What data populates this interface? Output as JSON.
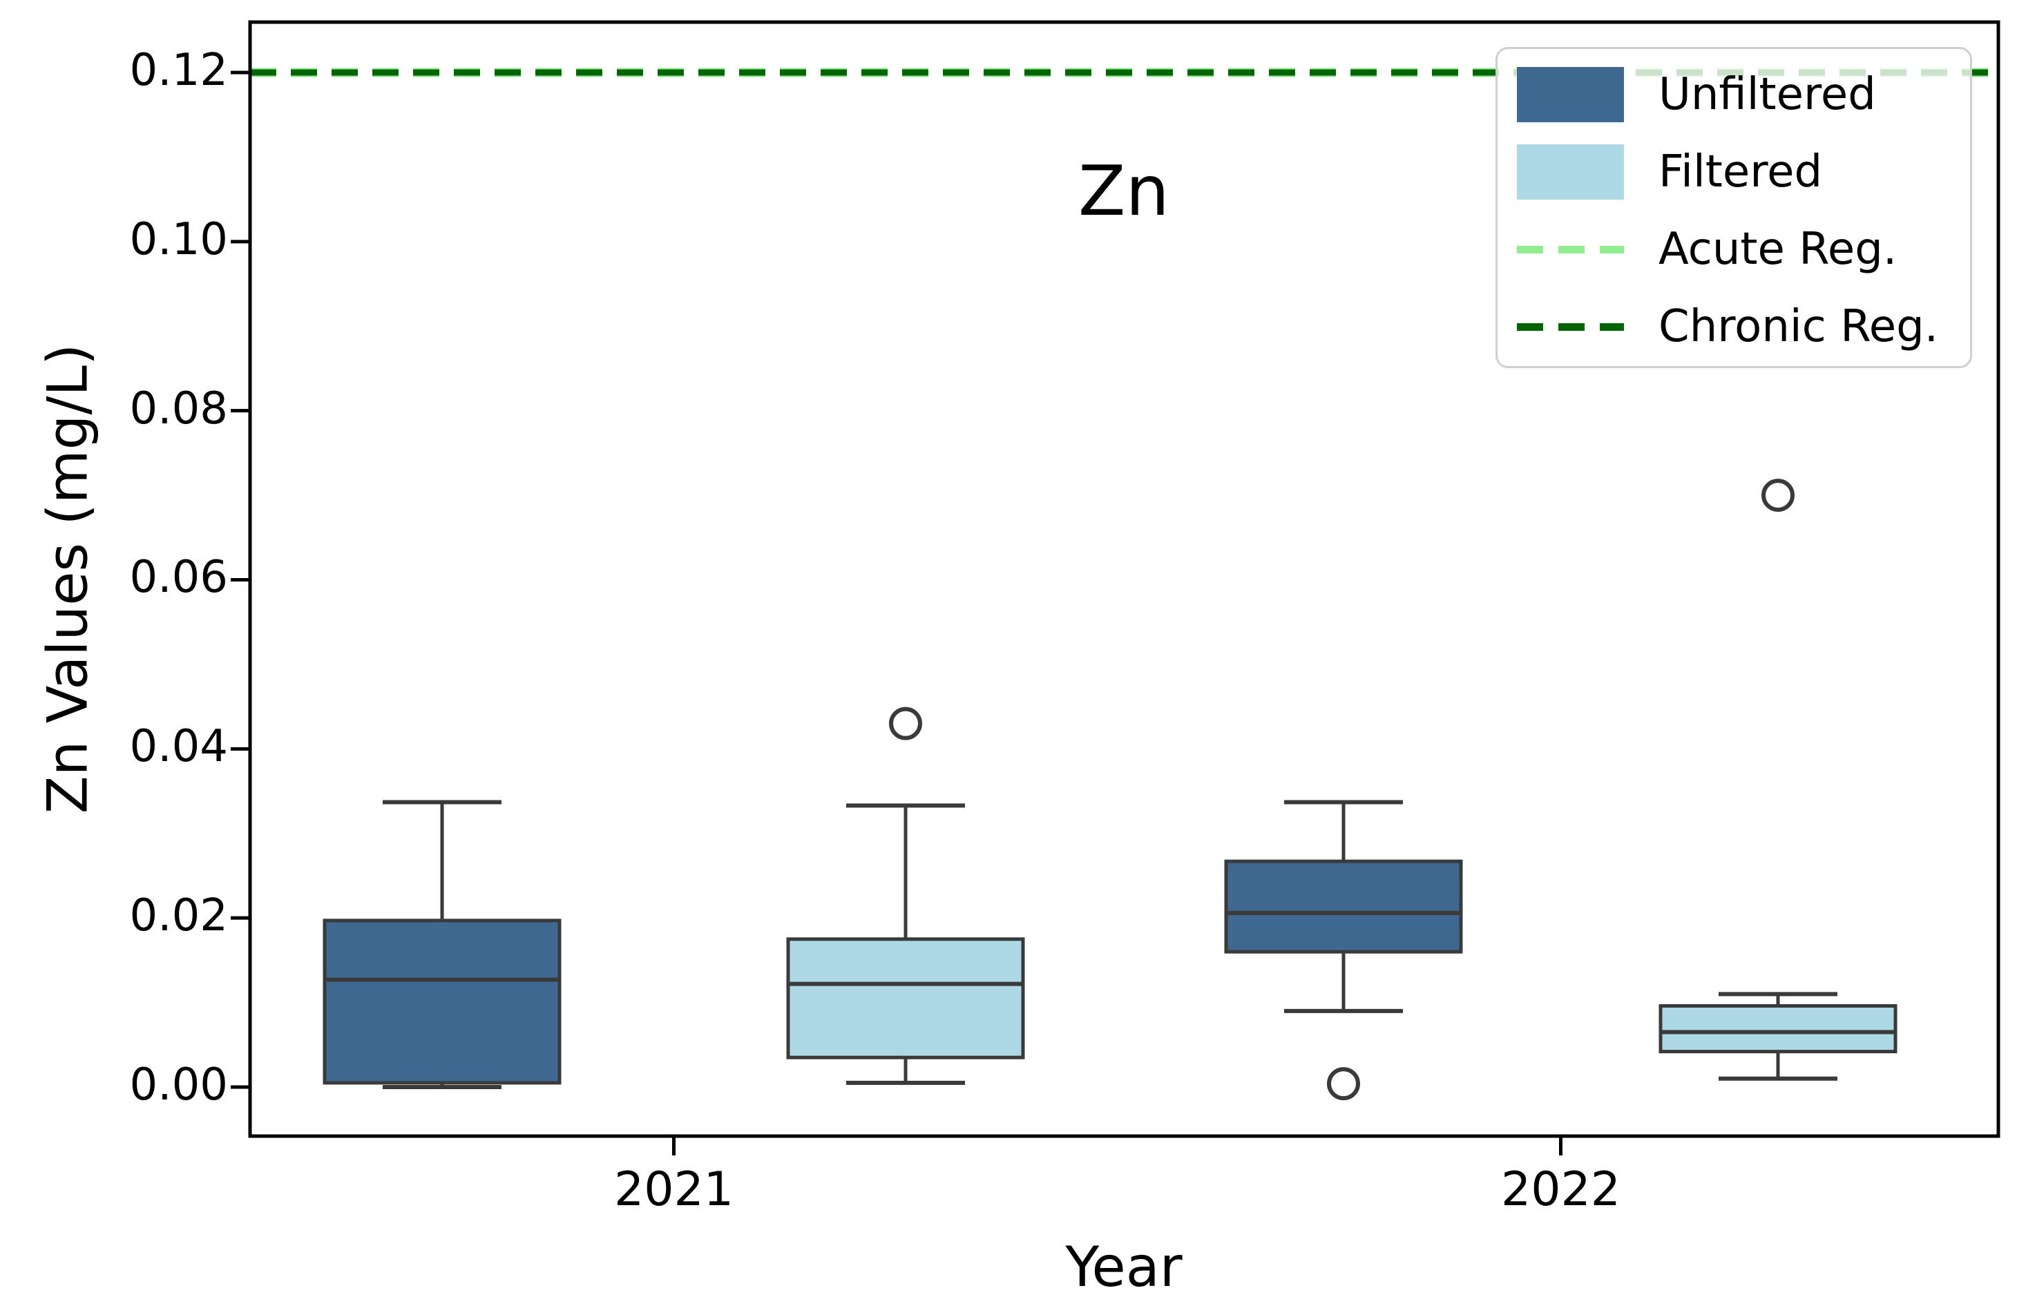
{
  "figure": {
    "title": "Zn",
    "xlabel": "Year",
    "ylabel": "Zn Values (mg/L)"
  },
  "axis": {
    "ytick_labels": [
      "0.00",
      "0.02",
      "0.04",
      "0.06",
      "0.08",
      "0.10",
      "0.12"
    ],
    "xtick_labels": [
      "2021",
      "2022"
    ]
  },
  "legend": {
    "items": [
      {
        "label": "Unfiltered",
        "type": "patch",
        "color": "#3e6890"
      },
      {
        "label": "Filtered",
        "type": "patch",
        "color": "#add8e6"
      },
      {
        "label": "Acute Reg.",
        "type": "dash",
        "color": "#90ee90"
      },
      {
        "label": "Chronic Reg.",
        "type": "dash",
        "color": "#006400"
      }
    ]
  },
  "chart_data": {
    "type": "boxplot",
    "title": "Zn",
    "xlabel": "Year",
    "ylabel": "Zn Values (mg/L)",
    "categories": [
      "2021",
      "2022"
    ],
    "ylim": [
      -0.006,
      0.126
    ],
    "yticks": [
      0.0,
      0.02,
      0.04,
      0.06,
      0.08,
      0.1,
      0.12
    ],
    "grid": false,
    "legend_position": "upper right",
    "box_edge_color": "#3a3a3a",
    "series": [
      {
        "name": "Unfiltered",
        "color": "#3e6890",
        "boxes": [
          {
            "category": "2021",
            "whislo": 0.0,
            "q1": 0.0005,
            "med": 0.0127,
            "q3": 0.0197,
            "whishi": 0.0337,
            "fliers": []
          },
          {
            "category": "2022",
            "whislo": 0.009,
            "q1": 0.016,
            "med": 0.0206,
            "q3": 0.0267,
            "whishi": 0.0337,
            "fliers": [
              0.0004
            ]
          }
        ]
      },
      {
        "name": "Filtered",
        "color": "#add8e6",
        "boxes": [
          {
            "category": "2021",
            "whislo": 0.0005,
            "q1": 0.0035,
            "med": 0.0122,
            "q3": 0.0175,
            "whishi": 0.0333,
            "fliers": [
              0.043
            ]
          },
          {
            "category": "2022",
            "whislo": 0.001,
            "q1": 0.0042,
            "med": 0.0065,
            "q3": 0.0096,
            "whishi": 0.011,
            "fliers": [
              0.07
            ]
          }
        ]
      }
    ],
    "reference_lines": [
      {
        "name": "Acute Reg.",
        "value": 0.12,
        "color": "#90ee90",
        "linestyle": "dashed"
      },
      {
        "name": "Chronic Reg.",
        "value": 0.12,
        "color": "#006400",
        "linestyle": "dashed"
      }
    ]
  }
}
